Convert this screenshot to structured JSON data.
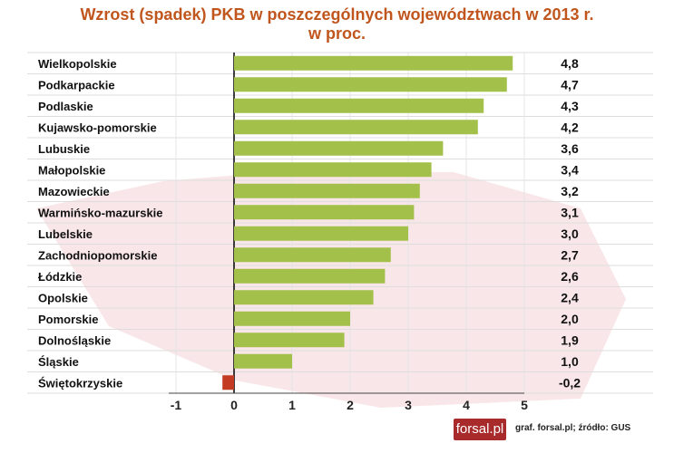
{
  "chart_data": {
    "type": "bar",
    "orientation": "horizontal",
    "title": "Wzrost (spadek) PKB w poszczególnych województwach w 2013 r.",
    "subtitle": "w proc.",
    "categories": [
      "Wielkopolskie",
      "Podkarpackie",
      "Podlaskie",
      "Kujawsko-pomorskie",
      "Lubuskie",
      "Małopolskie",
      "Mazowieckie",
      "Warmińsko-mazurskie",
      "Lubelskie",
      "Zachodniopomorskie",
      "Łódzkie",
      "Opolskie",
      "Pomorskie",
      "Dolnośląskie",
      "Śląskie",
      "Świętokrzyskie"
    ],
    "values": [
      4.8,
      4.7,
      4.3,
      4.2,
      3.6,
      3.4,
      3.2,
      3.1,
      3.0,
      2.7,
      2.6,
      2.4,
      2.0,
      1.9,
      1.0,
      -0.2
    ],
    "value_labels": [
      "4,8",
      "4,7",
      "4,3",
      "4,2",
      "3,6",
      "3,4",
      "3,2",
      "3,1",
      "3,0",
      "2,7",
      "2,6",
      "2,4",
      "2,0",
      "1,9",
      "1,0",
      "-0,2"
    ],
    "xlim": [
      -1,
      5
    ],
    "xticks": [
      "-1",
      "0",
      "1",
      "2",
      "3",
      "4",
      "5"
    ],
    "colors": {
      "positive": "#a3c14a",
      "negative": "#c23b22",
      "title": "#c0561e"
    },
    "grid": true
  },
  "logo": "forsal.pl",
  "credit": "graf. forsal.pl;  źródło: GUS"
}
